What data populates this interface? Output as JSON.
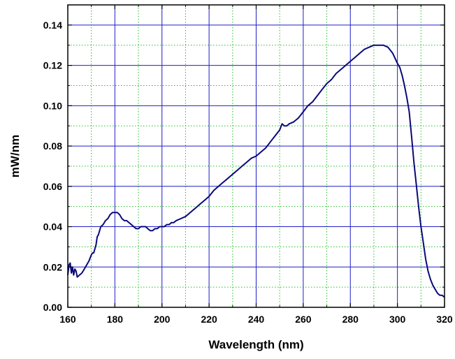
{
  "chart_data": {
    "type": "line",
    "title": "",
    "xlabel": "Wavelength (nm)",
    "ylabel": "mW/nm",
    "xlim": [
      160,
      320
    ],
    "ylim": [
      0.0,
      0.15
    ],
    "x_ticks": [
      "160",
      "180",
      "200",
      "220",
      "240",
      "260",
      "280",
      "300",
      "320"
    ],
    "y_ticks": [
      "0.00",
      "0.02",
      "0.04",
      "0.06",
      "0.08",
      "0.10",
      "0.12",
      "0.14"
    ],
    "grid": {
      "major": true,
      "minor": true,
      "major_color": "#1f1fc8",
      "minor_color": "#22c022"
    },
    "series": [
      {
        "color": "#0a0a78",
        "x": [
          160,
          160.5,
          161,
          161.5,
          162,
          162.5,
          163,
          163.5,
          164,
          165,
          166,
          167,
          168,
          169,
          170,
          170.5,
          171,
          172,
          172.5,
          173,
          174,
          175,
          176,
          177,
          178,
          179,
          180,
          181,
          182,
          183,
          184,
          185,
          186,
          187,
          188,
          189,
          190,
          191,
          192,
          193,
          194,
          195,
          196,
          197,
          198,
          199,
          200,
          201,
          202,
          203,
          204,
          205,
          206,
          208,
          210,
          212,
          214,
          216,
          218,
          220,
          222,
          224,
          226,
          228,
          230,
          232,
          234,
          236,
          238,
          240,
          242,
          244,
          246,
          248,
          250,
          251,
          252,
          253,
          254,
          256,
          258,
          260,
          262,
          264,
          266,
          268,
          270,
          272,
          274,
          276,
          278,
          280,
          282,
          284,
          286,
          288,
          290,
          292,
          294,
          296,
          298,
          300,
          301,
          302,
          303,
          304,
          305,
          306,
          307,
          308,
          309,
          310,
          311,
          312,
          313,
          314,
          315,
          316,
          317,
          318,
          319,
          320
        ],
        "y": [
          0.016,
          0.021,
          0.022,
          0.017,
          0.02,
          0.016,
          0.019,
          0.018,
          0.015,
          0.016,
          0.017,
          0.019,
          0.021,
          0.023,
          0.026,
          0.027,
          0.027,
          0.031,
          0.035,
          0.036,
          0.04,
          0.041,
          0.043,
          0.044,
          0.046,
          0.047,
          0.047,
          0.047,
          0.046,
          0.044,
          0.043,
          0.043,
          0.042,
          0.041,
          0.04,
          0.039,
          0.039,
          0.04,
          0.04,
          0.04,
          0.039,
          0.038,
          0.038,
          0.039,
          0.039,
          0.04,
          0.04,
          0.04,
          0.041,
          0.041,
          0.042,
          0.042,
          0.043,
          0.044,
          0.045,
          0.047,
          0.049,
          0.051,
          0.053,
          0.055,
          0.058,
          0.06,
          0.062,
          0.064,
          0.066,
          0.068,
          0.07,
          0.072,
          0.074,
          0.075,
          0.077,
          0.079,
          0.082,
          0.085,
          0.088,
          0.091,
          0.09,
          0.09,
          0.091,
          0.092,
          0.094,
          0.097,
          0.1,
          0.102,
          0.105,
          0.108,
          0.111,
          0.113,
          0.116,
          0.118,
          0.12,
          0.122,
          0.124,
          0.126,
          0.128,
          0.129,
          0.13,
          0.13,
          0.13,
          0.129,
          0.126,
          0.121,
          0.119,
          0.115,
          0.11,
          0.104,
          0.097,
          0.085,
          0.072,
          0.061,
          0.05,
          0.04,
          0.032,
          0.024,
          0.018,
          0.014,
          0.011,
          0.009,
          0.007,
          0.006,
          0.006,
          0.005
        ]
      }
    ]
  }
}
